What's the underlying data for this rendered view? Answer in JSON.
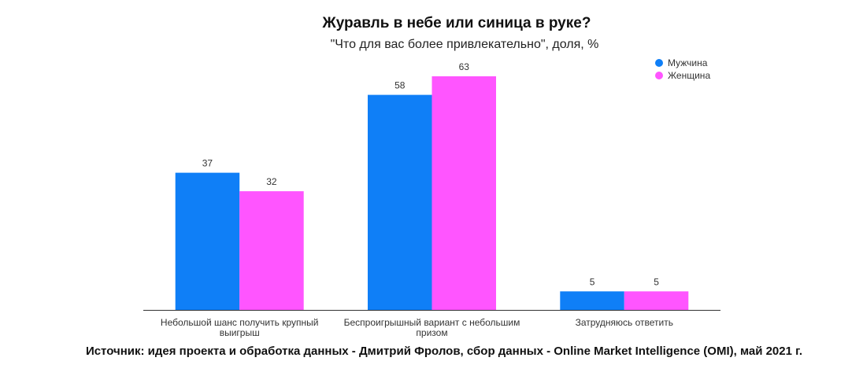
{
  "chart_data": {
    "type": "bar",
    "title": "Журавль в небе или синица в руке?",
    "subtitle": "\"Что для вас более привлекательно\", доля, %",
    "categories": [
      [
        "Небольшой шанс получить крупный",
        "выигрыш"
      ],
      [
        "Беспроигрышный вариант с небольшим",
        "призом"
      ],
      [
        "Затрудняюсь ответить"
      ]
    ],
    "series": [
      {
        "name": "Мужчина",
        "values": [
          37,
          58,
          5
        ],
        "color": "#0f7ff7"
      },
      {
        "name": "Женщина",
        "values": [
          32,
          63,
          5
        ],
        "color": "#ff55ff"
      }
    ],
    "ylim": [
      0,
      63
    ],
    "grid": false,
    "legend_position": "top-right",
    "data_labels": true,
    "source": "Источник: идея проекта и обработка данных - Дмитрий Фролов, сбор данных - Online Market Intelligence (OMI), май 2021 г."
  }
}
